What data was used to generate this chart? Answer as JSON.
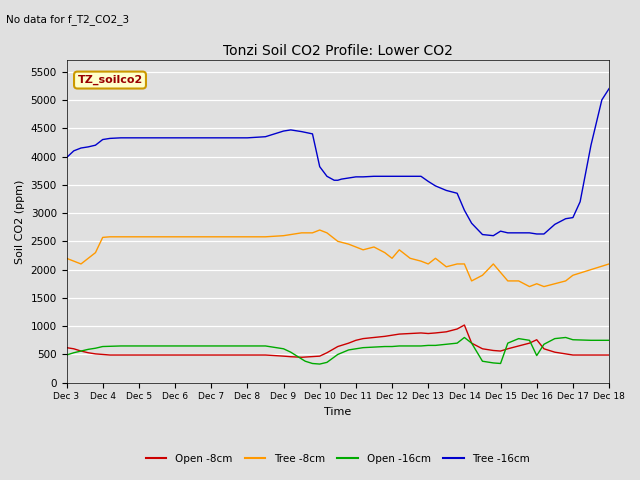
{
  "title": "Tonzi Soil CO2 Profile: Lower CO2",
  "subtitle": "No data for f_T2_CO2_3",
  "xlabel": "Time",
  "ylabel": "Soil CO2 (ppm)",
  "ylim": [
    0,
    5700
  ],
  "yticks": [
    0,
    500,
    1000,
    1500,
    2000,
    2500,
    3000,
    3500,
    4000,
    4500,
    5000,
    5500
  ],
  "background_color": "#e0e0e0",
  "plot_bg_color": "#e0e0e0",
  "legend_label": "TZ_soilco2",
  "series": {
    "open_8cm": {
      "color": "#cc0000",
      "label": "Open -8cm",
      "x": [
        3,
        3.2,
        3.4,
        3.6,
        3.8,
        4,
        4.2,
        4.4,
        4.6,
        4.8,
        5,
        5.5,
        6,
        6.5,
        7,
        7.5,
        8,
        8.5,
        9,
        9.2,
        9.5,
        10,
        10.2,
        10.5,
        10.8,
        11,
        11.2,
        11.5,
        11.8,
        12,
        12.2,
        12.5,
        12.8,
        13,
        13.2,
        13.5,
        13.8,
        14,
        14.2,
        14.5,
        14.8,
        15,
        15.2,
        15.5,
        15.8,
        16,
        16.2,
        16.5,
        16.8,
        17,
        17.5,
        18
      ],
      "y": [
        620,
        600,
        560,
        530,
        510,
        500,
        490,
        490,
        490,
        490,
        490,
        490,
        490,
        490,
        490,
        490,
        490,
        490,
        470,
        460,
        450,
        470,
        530,
        640,
        700,
        750,
        780,
        800,
        820,
        840,
        860,
        870,
        880,
        870,
        880,
        900,
        950,
        1020,
        700,
        600,
        570,
        560,
        600,
        650,
        700,
        760,
        600,
        540,
        510,
        490,
        490,
        490
      ]
    },
    "tree_8cm": {
      "color": "#ff9900",
      "label": "Tree -8cm",
      "x": [
        3,
        3.2,
        3.4,
        3.6,
        3.8,
        4,
        4.2,
        4.5,
        4.8,
        5,
        5.5,
        6,
        6.5,
        7,
        7.5,
        8,
        8.5,
        9,
        9.2,
        9.5,
        9.8,
        10,
        10.2,
        10.5,
        10.8,
        11,
        11.2,
        11.5,
        11.8,
        12,
        12.2,
        12.5,
        12.8,
        13,
        13.2,
        13.5,
        13.8,
        14,
        14.2,
        14.5,
        14.8,
        15,
        15.2,
        15.5,
        15.8,
        16,
        16.2,
        16.5,
        16.8,
        17,
        17.5,
        18
      ],
      "y": [
        2200,
        2150,
        2100,
        2200,
        2300,
        2570,
        2580,
        2580,
        2580,
        2580,
        2580,
        2580,
        2580,
        2580,
        2580,
        2580,
        2580,
        2600,
        2620,
        2650,
        2650,
        2700,
        2650,
        2500,
        2450,
        2400,
        2350,
        2400,
        2300,
        2200,
        2350,
        2200,
        2150,
        2100,
        2200,
        2050,
        2100,
        2100,
        1800,
        1900,
        2100,
        1950,
        1800,
        1800,
        1700,
        1750,
        1700,
        1750,
        1800,
        1900,
        2000,
        2100
      ]
    },
    "open_16cm": {
      "color": "#00aa00",
      "label": "Open -16cm",
      "x": [
        3,
        3.2,
        3.4,
        3.6,
        3.8,
        4,
        4.5,
        5,
        5.5,
        6,
        6.5,
        7,
        7.5,
        8,
        8.5,
        9,
        9.2,
        9.4,
        9.6,
        9.8,
        10,
        10.2,
        10.5,
        10.8,
        11,
        11.2,
        11.5,
        11.8,
        12,
        12.2,
        12.5,
        12.8,
        13,
        13.2,
        13.5,
        13.8,
        14,
        14.2,
        14.5,
        14.8,
        15,
        15.2,
        15.5,
        15.8,
        16,
        16.2,
        16.5,
        16.8,
        17,
        17.5,
        18
      ],
      "y": [
        490,
        530,
        560,
        590,
        610,
        640,
        650,
        650,
        650,
        650,
        650,
        650,
        650,
        650,
        650,
        600,
        540,
        460,
        380,
        340,
        330,
        360,
        500,
        580,
        600,
        620,
        630,
        640,
        640,
        650,
        650,
        650,
        660,
        660,
        680,
        700,
        800,
        700,
        380,
        350,
        340,
        700,
        780,
        750,
        480,
        680,
        780,
        800,
        760,
        750,
        750
      ]
    },
    "tree_16cm": {
      "color": "#0000cc",
      "label": "Tree -16cm",
      "x": [
        3,
        3.2,
        3.4,
        3.6,
        3.8,
        4,
        4.2,
        4.5,
        4.8,
        5,
        5.5,
        6,
        6.5,
        7,
        7.5,
        8,
        8.5,
        9,
        9.2,
        9.5,
        9.8,
        10,
        10.2,
        10.4,
        10.5,
        10.6,
        10.8,
        11,
        11.2,
        11.5,
        11.8,
        12,
        12.2,
        12.5,
        12.8,
        13,
        13.2,
        13.5,
        13.8,
        14,
        14.2,
        14.5,
        14.8,
        15,
        15.2,
        15.5,
        15.8,
        16,
        16.2,
        16.5,
        16.8,
        17,
        17.2,
        17.5,
        17.8,
        18
      ],
      "y": [
        3980,
        4100,
        4150,
        4170,
        4200,
        4300,
        4320,
        4330,
        4330,
        4330,
        4330,
        4330,
        4330,
        4330,
        4330,
        4330,
        4350,
        4450,
        4470,
        4440,
        4400,
        3820,
        3650,
        3580,
        3580,
        3600,
        3620,
        3640,
        3640,
        3650,
        3650,
        3650,
        3650,
        3650,
        3650,
        3560,
        3480,
        3400,
        3350,
        3050,
        2820,
        2620,
        2600,
        2680,
        2650,
        2650,
        2650,
        2630,
        2630,
        2800,
        2900,
        2920,
        3200,
        4200,
        5000,
        5200
      ]
    }
  }
}
